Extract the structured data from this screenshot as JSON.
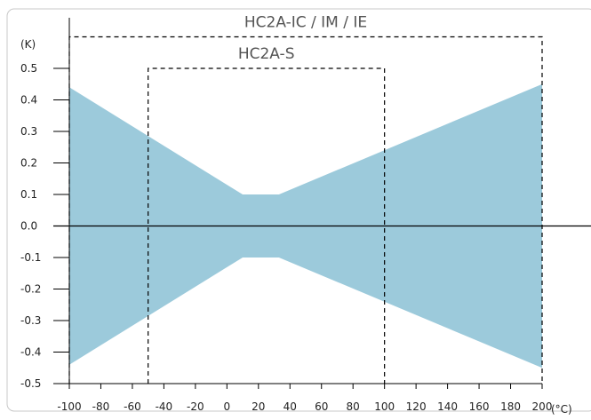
{
  "chart_data": {
    "type": "area",
    "y_unit_label": "(K)",
    "x_unit_label": "(°C)",
    "xlim": [
      -100,
      200
    ],
    "ylim": [
      -0.5,
      0.5
    ],
    "x_ticks": [
      -100,
      -80,
      -60,
      -40,
      -20,
      0,
      20,
      40,
      60,
      80,
      100,
      120,
      140,
      160,
      180,
      200
    ],
    "y_ticks": [
      "0.5",
      "0.4",
      "0.3",
      "0.2",
      "0.1",
      "0.0",
      "-0.1",
      "-0.2",
      "-0.3",
      "-0.4",
      "-0.5"
    ],
    "tolerance_band": {
      "x": [
        -100,
        10,
        33,
        200
      ],
      "upper": [
        0.44,
        0.1,
        0.1,
        0.45
      ],
      "lower": [
        -0.44,
        -0.1,
        -0.1,
        -0.45
      ],
      "color": "#9ccadb"
    },
    "zero_line": 0.0,
    "ranges": [
      {
        "label": "HC2A-IC / IM / IE",
        "x_start": -100,
        "x_end": 200,
        "y_level": 0.6
      },
      {
        "label": "HC2A-S",
        "x_start": -50,
        "x_end": 100,
        "y_level": 0.5
      }
    ]
  }
}
